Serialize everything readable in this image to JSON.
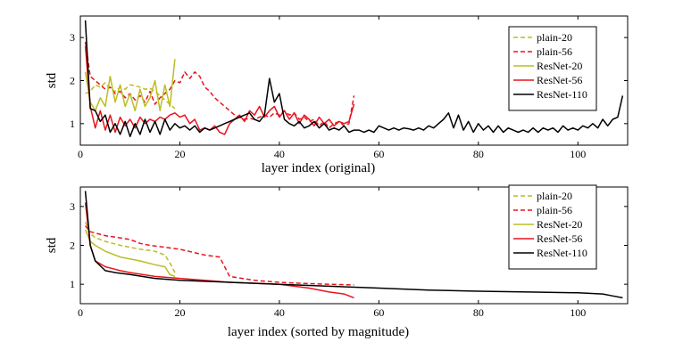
{
  "chart_data": [
    {
      "type": "line",
      "title": "",
      "xlabel": "layer index (original)",
      "ylabel": "std",
      "xlim": [
        0,
        110
      ],
      "ylim": [
        0.5,
        3.5
      ],
      "xticks": [
        0,
        20,
        40,
        60,
        80,
        100
      ],
      "xtick_labels": [
        "0",
        "20",
        "40",
        "60",
        "80",
        "100"
      ],
      "yticks": [
        1,
        2,
        3
      ],
      "ytick_labels": [
        "1",
        "2",
        "3"
      ],
      "legend_position": "top-right",
      "series": [
        {
          "name": "plain-20",
          "color": "#bcbd22",
          "dash": true,
          "x": [
            1,
            2,
            3,
            4,
            5,
            6,
            7,
            8,
            9,
            10,
            11,
            12,
            13,
            14,
            15,
            16,
            17,
            18,
            19
          ],
          "y": [
            1.7,
            1.75,
            1.9,
            1.85,
            1.95,
            1.8,
            1.75,
            1.85,
            1.8,
            1.9,
            1.88,
            1.85,
            1.8,
            1.82,
            1.75,
            1.65,
            1.55,
            1.45,
            1.35
          ]
        },
        {
          "name": "plain-56",
          "color": "#e8141e",
          "dash": true,
          "x": [
            1,
            2,
            3,
            4,
            5,
            6,
            7,
            8,
            9,
            10,
            11,
            12,
            13,
            14,
            15,
            16,
            17,
            18,
            19,
            20,
            21,
            22,
            23,
            24,
            25,
            26,
            27,
            28,
            29,
            30,
            31,
            32,
            33,
            34,
            35,
            36,
            37,
            38,
            39,
            40,
            41,
            42,
            43,
            44,
            45,
            46,
            47,
            48,
            49,
            50,
            51,
            52,
            53,
            54,
            55
          ],
          "y": [
            2.9,
            2.1,
            2.0,
            1.9,
            1.8,
            1.85,
            1.7,
            1.75,
            1.6,
            1.7,
            1.55,
            1.65,
            1.5,
            1.75,
            1.45,
            1.6,
            1.7,
            1.8,
            2.0,
            1.95,
            2.2,
            2.05,
            2.2,
            2.1,
            1.85,
            1.75,
            1.6,
            1.5,
            1.4,
            1.3,
            1.2,
            1.15,
            1.1,
            1.12,
            1.1,
            1.15,
            1.2,
            1.15,
            1.25,
            1.2,
            1.3,
            1.2,
            1.25,
            1.1,
            1.15,
            1.05,
            1.1,
            0.95,
            1.05,
            0.9,
            1.0,
            1.05,
            0.95,
            1.0,
            1.65
          ]
        },
        {
          "name": "ResNet-20",
          "color": "#bcbd22",
          "dash": false,
          "x": [
            1,
            2,
            3,
            4,
            5,
            6,
            7,
            8,
            9,
            10,
            11,
            12,
            13,
            14,
            15,
            16,
            17,
            18,
            19
          ],
          "y": [
            2.2,
            1.5,
            1.3,
            1.6,
            1.4,
            2.1,
            1.5,
            1.9,
            1.4,
            1.7,
            1.3,
            1.8,
            1.4,
            1.6,
            2.0,
            1.3,
            1.9,
            1.4,
            2.5
          ]
        },
        {
          "name": "ResNet-56",
          "color": "#e8141e",
          "dash": false,
          "x": [
            1,
            2,
            3,
            4,
            5,
            6,
            7,
            8,
            9,
            10,
            11,
            12,
            13,
            14,
            15,
            16,
            17,
            18,
            19,
            20,
            21,
            22,
            23,
            24,
            25,
            26,
            27,
            28,
            29,
            30,
            31,
            32,
            33,
            34,
            35,
            36,
            37,
            38,
            39,
            40,
            41,
            42,
            43,
            44,
            45,
            46,
            47,
            48,
            49,
            50,
            51,
            52,
            53,
            54,
            55
          ],
          "y": [
            2.8,
            1.4,
            0.9,
            1.3,
            0.85,
            1.2,
            0.8,
            1.15,
            0.95,
            1.1,
            0.9,
            1.15,
            1.0,
            1.1,
            1.05,
            1.15,
            1.1,
            1.2,
            1.25,
            1.15,
            1.2,
            1.0,
            1.1,
            0.85,
            0.9,
            0.85,
            0.95,
            0.8,
            0.75,
            1.0,
            1.1,
            1.2,
            1.05,
            1.3,
            1.2,
            1.4,
            1.15,
            1.3,
            1.4,
            1.15,
            1.3,
            1.1,
            1.25,
            1.0,
            1.2,
            1.1,
            0.95,
            1.15,
            1.0,
            1.1,
            0.95,
            1.05,
            1.0,
            1.05,
            1.45
          ]
        },
        {
          "name": "ResNet-110",
          "color": "#000000",
          "dash": false,
          "x": [
            1,
            2,
            3,
            4,
            5,
            6,
            7,
            8,
            9,
            10,
            11,
            12,
            13,
            14,
            15,
            16,
            17,
            18,
            19,
            20,
            21,
            22,
            23,
            24,
            25,
            26,
            27,
            28,
            29,
            30,
            31,
            32,
            33,
            34,
            35,
            36,
            37,
            38,
            39,
            40,
            41,
            42,
            43,
            44,
            45,
            46,
            47,
            48,
            49,
            50,
            51,
            52,
            53,
            54,
            55,
            56,
            57,
            58,
            59,
            60,
            61,
            62,
            63,
            64,
            65,
            66,
            67,
            68,
            69,
            70,
            71,
            72,
            73,
            74,
            75,
            76,
            77,
            78,
            79,
            80,
            81,
            82,
            83,
            84,
            85,
            86,
            87,
            88,
            89,
            90,
            91,
            92,
            93,
            94,
            95,
            96,
            97,
            98,
            99,
            100,
            101,
            102,
            103,
            104,
            105,
            106,
            107,
            108,
            109
          ],
          "y": [
            3.4,
            1.35,
            1.3,
            1.05,
            1.2,
            0.8,
            1.0,
            0.75,
            1.05,
            0.7,
            1.0,
            0.75,
            1.1,
            0.8,
            1.05,
            0.75,
            1.1,
            0.85,
            1.0,
            0.9,
            0.95,
            0.85,
            0.95,
            0.8,
            0.9,
            0.85,
            0.9,
            0.95,
            1.0,
            1.05,
            1.1,
            1.15,
            1.2,
            1.25,
            1.1,
            1.05,
            1.2,
            2.05,
            1.5,
            1.7,
            1.1,
            1.0,
            0.95,
            1.05,
            0.9,
            0.95,
            1.05,
            0.9,
            1.0,
            0.85,
            0.9,
            0.85,
            0.95,
            0.8,
            0.85,
            0.85,
            0.8,
            0.85,
            0.8,
            0.95,
            0.9,
            0.85,
            0.9,
            0.85,
            0.9,
            0.88,
            0.85,
            0.9,
            0.85,
            0.95,
            0.9,
            1.0,
            1.1,
            1.25,
            0.9,
            1.2,
            0.85,
            1.05,
            0.8,
            1.0,
            0.85,
            0.95,
            0.8,
            0.95,
            0.8,
            0.9,
            0.85,
            0.8,
            0.85,
            0.8,
            0.9,
            0.8,
            0.9,
            0.85,
            0.9,
            0.8,
            0.95,
            0.85,
            0.9,
            0.85,
            0.95,
            0.9,
            1.0,
            0.9,
            1.1,
            0.95,
            1.1,
            1.15,
            1.65
          ]
        }
      ]
    },
    {
      "type": "line",
      "title": "",
      "xlabel": "layer index (sorted by magnitude)",
      "ylabel": "std",
      "xlim": [
        0,
        110
      ],
      "ylim": [
        0.5,
        3.5
      ],
      "xticks": [
        0,
        20,
        40,
        60,
        80,
        100
      ],
      "xtick_labels": [
        "0",
        "20",
        "40",
        "60",
        "80",
        "100"
      ],
      "yticks": [
        1,
        2,
        3
      ],
      "ytick_labels": [
        "1",
        "2",
        "3"
      ],
      "legend_position": "top-right",
      "series": [
        {
          "name": "plain-20",
          "color": "#bcbd22",
          "dash": true,
          "x": [
            1,
            2,
            3,
            5,
            8,
            12,
            15,
            17,
            18,
            19
          ],
          "y": [
            2.6,
            2.3,
            2.2,
            2.1,
            2.0,
            1.9,
            1.85,
            1.75,
            1.55,
            1.3
          ]
        },
        {
          "name": "plain-56",
          "color": "#e8141e",
          "dash": true,
          "x": [
            1,
            2,
            5,
            10,
            12,
            14,
            20,
            25,
            28,
            29,
            30,
            35,
            40,
            45,
            50,
            55
          ],
          "y": [
            2.5,
            2.35,
            2.25,
            2.15,
            2.05,
            2.0,
            1.9,
            1.75,
            1.7,
            1.45,
            1.2,
            1.1,
            1.05,
            1.02,
            1.0,
            0.98
          ]
        },
        {
          "name": "ResNet-20",
          "color": "#bcbd22",
          "dash": false,
          "x": [
            1,
            2,
            3,
            5,
            8,
            12,
            15,
            17,
            18,
            19
          ],
          "y": [
            2.4,
            2.1,
            2.0,
            1.85,
            1.7,
            1.6,
            1.5,
            1.45,
            1.25,
            1.2
          ]
        },
        {
          "name": "ResNet-56",
          "color": "#e8141e",
          "dash": false,
          "x": [
            1,
            2,
            3,
            5,
            8,
            10,
            15,
            20,
            25,
            30,
            40,
            46,
            50,
            53,
            55
          ],
          "y": [
            3.1,
            2.0,
            1.6,
            1.45,
            1.35,
            1.3,
            1.2,
            1.15,
            1.1,
            1.05,
            1.0,
            0.9,
            0.8,
            0.75,
            0.65
          ]
        },
        {
          "name": "ResNet-110",
          "color": "#000000",
          "dash": false,
          "x": [
            1,
            2,
            3,
            5,
            7,
            10,
            15,
            20,
            30,
            40,
            50,
            60,
            70,
            80,
            90,
            100,
            105,
            107,
            109
          ],
          "y": [
            3.4,
            2.0,
            1.6,
            1.35,
            1.3,
            1.25,
            1.15,
            1.1,
            1.05,
            1.0,
            0.95,
            0.9,
            0.85,
            0.82,
            0.8,
            0.78,
            0.75,
            0.7,
            0.65
          ]
        }
      ]
    }
  ]
}
